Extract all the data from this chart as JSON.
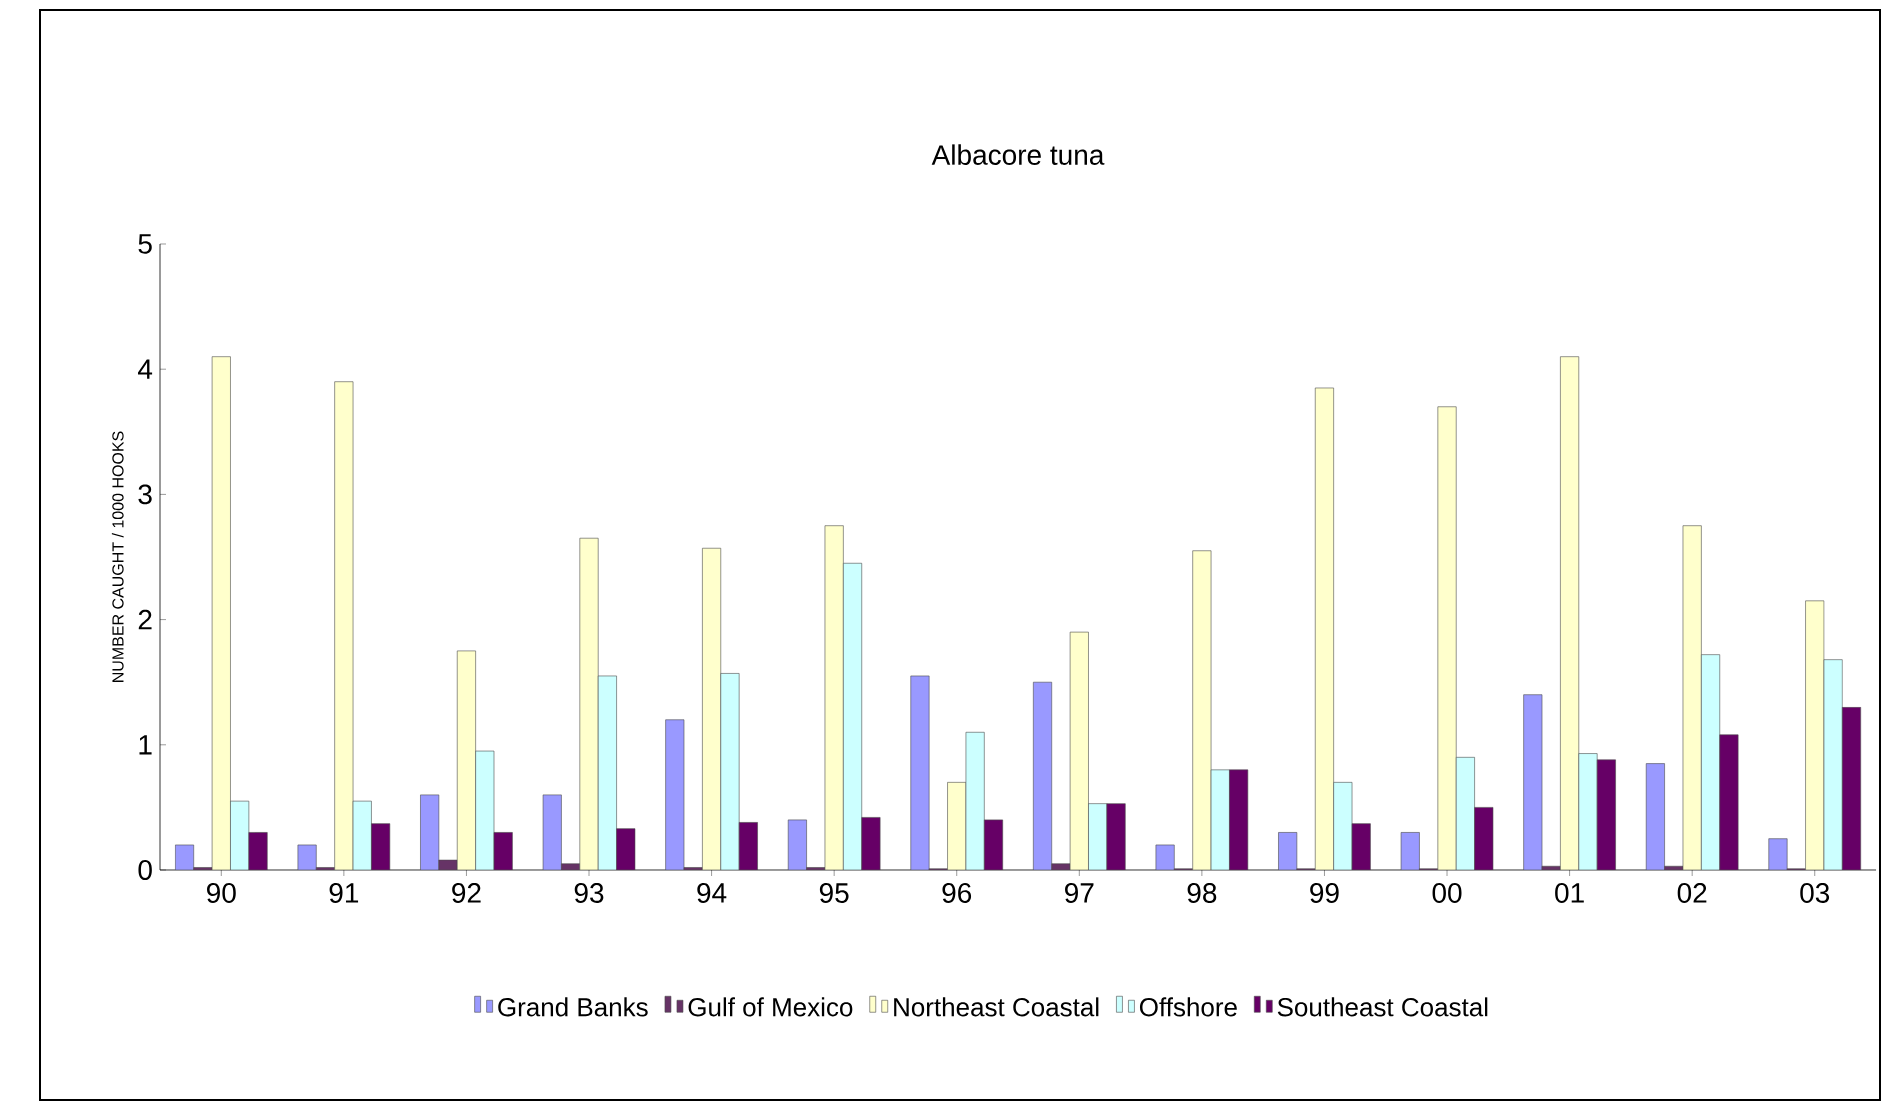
{
  "chart_data": {
    "type": "bar",
    "title": "Albacore tuna",
    "ylabel": "NUMBER CAUGHT / 1000 HOOKS",
    "categories": [
      "90",
      "91",
      "92",
      "93",
      "94",
      "95",
      "96",
      "97",
      "98",
      "99",
      "00",
      "01",
      "02",
      "03"
    ],
    "series": [
      {
        "name": "Grand Banks",
        "color": "#9999ff",
        "values": [
          0.2,
          0.2,
          0.6,
          0.6,
          1.2,
          0.4,
          1.55,
          1.5,
          0.2,
          0.3,
          0.3,
          1.4,
          0.85,
          0.25
        ]
      },
      {
        "name": "Gulf of Mexico",
        "color": "#663366",
        "values": [
          0.02,
          0.02,
          0.08,
          0.05,
          0.02,
          0.02,
          0.01,
          0.05,
          0.01,
          0.01,
          0.01,
          0.03,
          0.03,
          0.01
        ]
      },
      {
        "name": "Northeast Coastal",
        "color": "#ffffcc",
        "values": [
          4.1,
          3.9,
          1.75,
          2.65,
          2.57,
          2.75,
          0.7,
          1.9,
          2.55,
          3.85,
          3.7,
          4.1,
          2.75,
          2.15
        ]
      },
      {
        "name": "Offshore",
        "color": "#ccffff",
        "values": [
          0.55,
          0.55,
          0.95,
          1.55,
          1.57,
          2.45,
          1.1,
          0.53,
          0.8,
          0.7,
          0.9,
          0.93,
          1.72,
          1.68
        ]
      },
      {
        "name": "Southeast Coastal",
        "color": "#660066",
        "values": [
          0.3,
          0.37,
          0.3,
          0.33,
          0.38,
          0.42,
          0.4,
          0.53,
          0.8,
          0.37,
          0.5,
          0.88,
          1.08,
          1.3
        ]
      }
    ],
    "ylim": [
      0,
      5
    ],
    "yticks": [
      0,
      1,
      2,
      3,
      4,
      5
    ],
    "grid": false,
    "legend": "bottom"
  }
}
